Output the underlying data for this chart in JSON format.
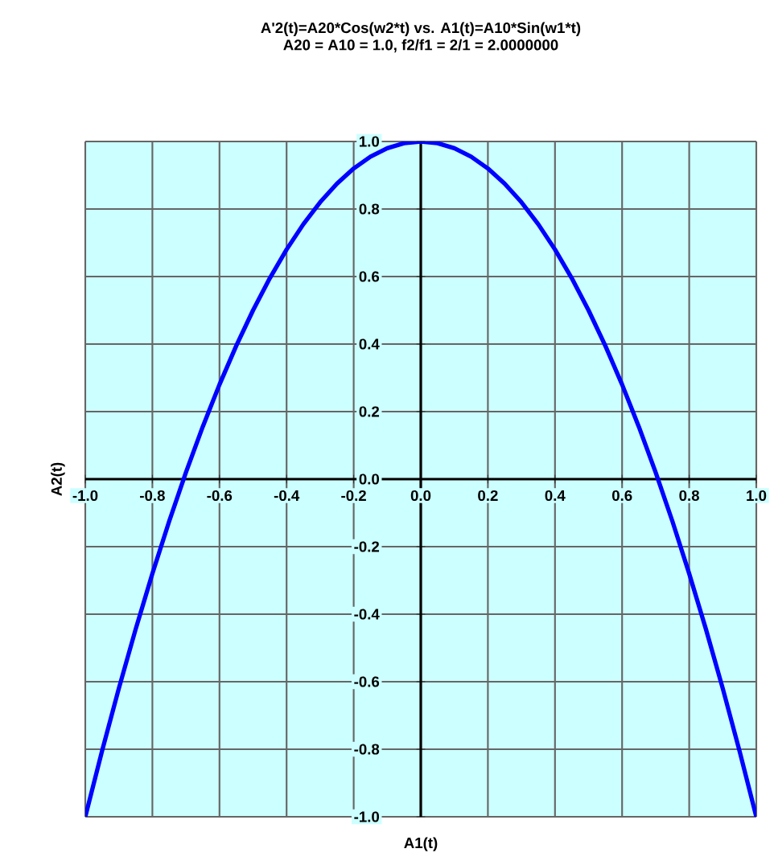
{
  "chart_data": {
    "type": "line",
    "title": "A'2(t)=A20*Cos(w2*t) vs. A1(t)=A10*Sin(w1*t)",
    "subtitle": "A20 = A10 = 1.0, f2/f1 = 2/1 = 2.0000000",
    "xlabel": "A1(t)",
    "ylabel": "A2(t)",
    "x": [
      -1.0,
      -0.95,
      -0.9,
      -0.85,
      -0.8,
      -0.75,
      -0.7,
      -0.65,
      -0.6,
      -0.55,
      -0.5,
      -0.45,
      -0.4,
      -0.35,
      -0.3,
      -0.25,
      -0.2,
      -0.15,
      -0.1,
      -0.05,
      0.0,
      0.05,
      0.1,
      0.15,
      0.2,
      0.25,
      0.3,
      0.35,
      0.4,
      0.45,
      0.5,
      0.55,
      0.6,
      0.65,
      0.7,
      0.75,
      0.8,
      0.85,
      0.9,
      0.95,
      1.0
    ],
    "series": [
      {
        "color": "#0000ff",
        "values": [
          -1.0,
          -0.805,
          -0.62,
          -0.445,
          -0.28,
          -0.125,
          0.02,
          0.155,
          0.28,
          0.395,
          0.5,
          0.595,
          0.68,
          0.755,
          0.82,
          0.875,
          0.92,
          0.955,
          0.98,
          0.995,
          1.0,
          0.995,
          0.98,
          0.955,
          0.92,
          0.875,
          0.82,
          0.755,
          0.68,
          0.595,
          0.5,
          0.395,
          0.28,
          0.155,
          0.02,
          -0.125,
          -0.28,
          -0.445,
          -0.62,
          -0.805,
          -1.0
        ]
      }
    ],
    "xlim": [
      -1.0,
      1.0
    ],
    "ylim": [
      -1.0,
      1.0
    ],
    "xticks": [
      {
        "value": -1.0,
        "label": "-1.0"
      },
      {
        "value": -0.8,
        "label": "-0.8"
      },
      {
        "value": -0.6,
        "label": "-0.6"
      },
      {
        "value": -0.4,
        "label": "-0.4"
      },
      {
        "value": -0.2,
        "label": "-0.2"
      },
      {
        "value": 0.0,
        "label": "0.0"
      },
      {
        "value": 0.2,
        "label": "0.2"
      },
      {
        "value": 0.4,
        "label": "0.4"
      },
      {
        "value": 0.6,
        "label": "0.6"
      },
      {
        "value": 0.8,
        "label": "0.8"
      },
      {
        "value": 1.0,
        "label": "1.0"
      }
    ],
    "yticks": [
      {
        "value": -1.0,
        "label": "-1.0"
      },
      {
        "value": -0.8,
        "label": "-0.8"
      },
      {
        "value": -0.6,
        "label": "-0.6"
      },
      {
        "value": -0.4,
        "label": "-0.4"
      },
      {
        "value": -0.2,
        "label": "-0.2"
      },
      {
        "value": 0.0,
        "label": "0.0"
      },
      {
        "value": 0.2,
        "label": "0.2"
      },
      {
        "value": 0.4,
        "label": "0.4"
      },
      {
        "value": 0.6,
        "label": "0.6"
      },
      {
        "value": 0.8,
        "label": "0.8"
      },
      {
        "value": 1.0,
        "label": "1.0"
      }
    ],
    "grid": true,
    "marker": "none",
    "line_style": "solid"
  }
}
